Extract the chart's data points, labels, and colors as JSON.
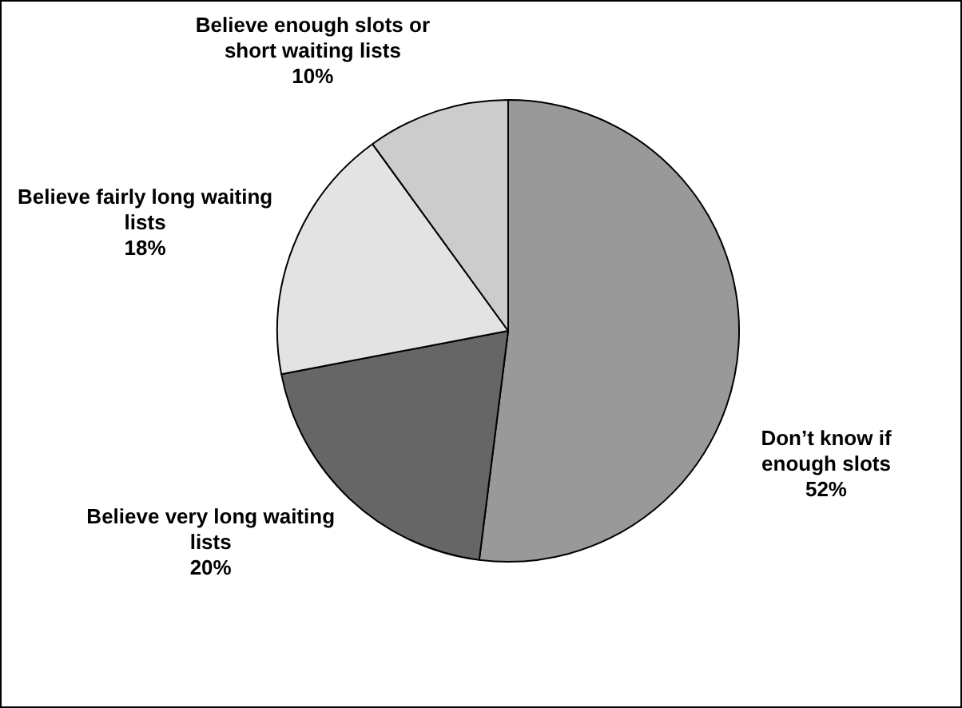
{
  "chart_data": {
    "type": "pie",
    "categories": [
      "Don’t know if enough slots",
      "Believe very long waiting lists",
      "Believe fairly long waiting lists",
      "Believe enough slots or short waiting lists"
    ],
    "values": [
      52,
      20,
      18,
      10
    ],
    "colors": [
      "#999999",
      "#666666",
      "#e3e3e3",
      "#cccccc"
    ],
    "value_labels": [
      "52%",
      "20%",
      "18%",
      "10%"
    ],
    "legend": false
  }
}
